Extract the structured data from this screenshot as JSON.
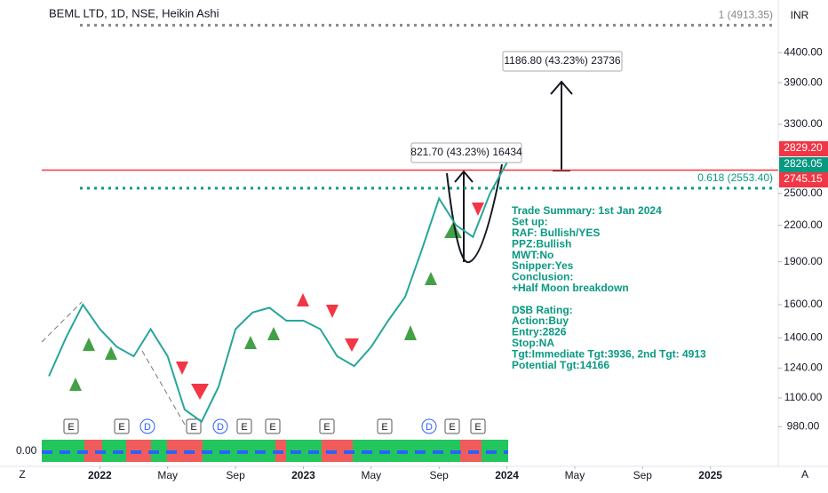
{
  "chart_data": {
    "type": "line",
    "title": "BEML LTD, 1D, NSE, Heikin Ashi",
    "currency": "INR",
    "log_scale": true,
    "grid": false,
    "x": [
      "2021-10",
      "2021-11",
      "2021-12",
      "2022-01",
      "2022-02",
      "2022-03",
      "2022-04",
      "2022-05",
      "2022-06",
      "2022-07",
      "2022-08",
      "2022-09",
      "2022-10",
      "2022-11",
      "2022-12",
      "2023-01",
      "2023-02",
      "2023-03",
      "2023-04",
      "2023-05",
      "2023-06",
      "2023-07",
      "2023-08",
      "2023-09",
      "2023-10",
      "2023-11",
      "2023-12",
      "2024-01"
    ],
    "series": [
      {
        "color": "#26a69a",
        "values": [
          1200,
          1400,
          1600,
          1450,
          1350,
          1300,
          1450,
          1300,
          1050,
          1000,
          1150,
          1450,
          1550,
          1580,
          1500,
          1500,
          1450,
          1300,
          1250,
          1350,
          1500,
          1650,
          2000,
          2450,
          2200,
          2100,
          2500,
          2826
        ]
      }
    ],
    "xlim": [
      "2021-09",
      "2025-05"
    ],
    "xticks": [
      {
        "value": "2022-01",
        "label": "2022"
      },
      {
        "value": "2022-05",
        "label": "May"
      },
      {
        "value": "2022-09",
        "label": "Sep"
      },
      {
        "value": "2023-01",
        "label": "2023"
      },
      {
        "value": "2023-05",
        "label": "May"
      },
      {
        "value": "2023-09",
        "label": "Sep"
      },
      {
        "value": "2024-01",
        "label": "2024"
      },
      {
        "value": "2024-05",
        "label": "May"
      },
      {
        "value": "2024-09",
        "label": "Sep"
      },
      {
        "value": "2025-01",
        "label": "2025"
      }
    ],
    "ylim": [
      930,
      5340
    ],
    "yticks": [
      {
        "value": 980,
        "label": "980.00"
      },
      {
        "value": 1100,
        "label": "1100.00"
      },
      {
        "value": 1240,
        "label": "1240.00"
      },
      {
        "value": 1400,
        "label": "1400.00"
      },
      {
        "value": 1600,
        "label": "1600.00"
      },
      {
        "value": 1900,
        "label": "1900.00"
      },
      {
        "value": 2200,
        "label": "2200.00"
      },
      {
        "value": 2500,
        "label": "2500.00"
      },
      {
        "value": 3300,
        "label": "3300.00"
      },
      {
        "value": 3900,
        "label": "3900.00"
      },
      {
        "value": 4400,
        "label": "4400.00"
      }
    ],
    "price_labels": [
      {
        "value": 2829.2,
        "label": "2829.20",
        "color": "#f23645"
      },
      {
        "value": 2826.05,
        "label": "2826.05",
        "color": "#089981"
      },
      {
        "value": 2745.15,
        "label": "2745.15",
        "color": "#f23645"
      }
    ],
    "fib_levels": [
      {
        "value": 4913.35,
        "label": "1 (4913.35)",
        "color": "#888888"
      },
      {
        "value": 2553.4,
        "label": "0.618 (2553.40)",
        "color": "#089981"
      }
    ],
    "measures": [
      "1186.80 (43.23%) 23736",
      "821.70 (43.23%) 16434"
    ],
    "notes": [
      "Trade Summary: 1st Jan 2024",
      "Set up:",
      "RAF: Bullish/YES",
      "PPZ:Bullish",
      "MWT:No",
      "Snipper:Yes",
      "Conclusion:",
      "+Half Moon breakdown",
      "",
      "D$B Rating:",
      "Action:Buy",
      "Entry:2826",
      "Stop:NA",
      "Tgt:Immediate Tgt:3936, 2nd Tgt: 4913",
      "Potential Tgt:14166"
    ],
    "events": [
      "E",
      "E",
      "D",
      "E",
      "D",
      "E",
      "E",
      "E",
      "E",
      "D",
      "E",
      "E"
    ],
    "indicator_label": "0.00",
    "corner_left": "Z",
    "corner_right": "A"
  }
}
